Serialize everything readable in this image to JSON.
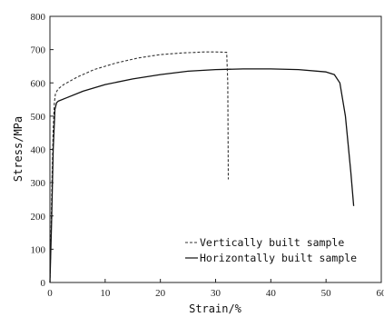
{
  "chart_data": {
    "type": "line",
    "xlabel": "Strain/%",
    "ylabel": "Stress/MPa",
    "xlim": [
      0,
      60
    ],
    "ylim": [
      0,
      800
    ],
    "xticks": [
      "0",
      "10",
      "20",
      "30",
      "40",
      "50",
      "60"
    ],
    "yticks": [
      "0",
      "100",
      "200",
      "300",
      "400",
      "500",
      "600",
      "700",
      "800"
    ],
    "grid": false,
    "legend": "bottom-right",
    "series": [
      {
        "name": "Vertically built sample",
        "style": "dashed",
        "color": "#333333",
        "x": [
          0,
          0.2,
          0.4,
          0.6,
          0.8,
          1.0,
          1.5,
          2.5,
          5,
          8,
          12,
          16,
          20,
          24,
          28,
          30,
          32,
          32.2,
          32.3
        ],
        "y": [
          0,
          150,
          320,
          460,
          540,
          568,
          582,
          595,
          618,
          640,
          660,
          675,
          685,
          690,
          693,
          693,
          692,
          600,
          310
        ]
      },
      {
        "name": "Horizontally built sample",
        "style": "solid",
        "color": "#111111",
        "x": [
          0,
          0.3,
          0.6,
          0.9,
          1.2,
          1.5,
          3,
          6,
          10,
          15,
          20,
          25,
          30,
          35,
          40,
          45,
          50,
          51.5,
          52.5,
          53.5,
          54.5,
          55
        ],
        "y": [
          0,
          180,
          400,
          520,
          540,
          545,
          555,
          575,
          595,
          612,
          625,
          635,
          640,
          642,
          642,
          640,
          633,
          625,
          600,
          500,
          330,
          230
        ]
      }
    ]
  }
}
